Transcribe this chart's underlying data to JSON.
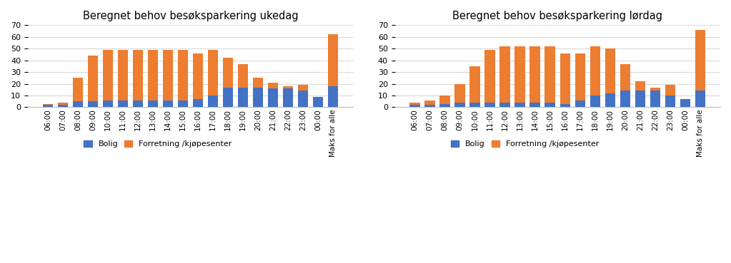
{
  "left_title": "Beregnet behov besøksparkering ukedag",
  "right_title": "Beregnet behov besøksparkering lørdag",
  "categories": [
    "06:00",
    "07:00",
    "08:00",
    "09:00",
    "10:00",
    "11:00",
    "12:00",
    "13:00",
    "14:00",
    "15:00",
    "16:00",
    "17:00",
    "18:00",
    "19:00",
    "20:00",
    "21:00",
    "22:00",
    "23:00",
    "00:00",
    "Maks for alle"
  ],
  "left_bolig": [
    2,
    2,
    5,
    5,
    6,
    6,
    6,
    6,
    6,
    6,
    7,
    10,
    17,
    17,
    17,
    16,
    16,
    14,
    9,
    18
  ],
  "left_forretning": [
    1,
    2,
    20,
    39,
    43,
    43,
    43,
    43,
    43,
    43,
    39,
    39,
    25,
    20,
    8,
    5,
    2,
    5,
    0,
    44
  ],
  "right_bolig": [
    2,
    2,
    3,
    4,
    4,
    4,
    4,
    4,
    4,
    4,
    3,
    6,
    10,
    12,
    14,
    14,
    14,
    10,
    7,
    14
  ],
  "right_forretning": [
    2,
    4,
    7,
    16,
    31,
    45,
    48,
    48,
    48,
    48,
    43,
    40,
    42,
    38,
    23,
    8,
    3,
    9,
    0,
    52
  ],
  "color_bolig": "#4472c4",
  "color_forretning": "#ed7d31",
  "ylim": [
    0,
    70
  ],
  "yticks": [
    0,
    10,
    20,
    30,
    40,
    50,
    60,
    70
  ],
  "legend_bolig": "Bolig",
  "legend_forretning": "Forretning /kjøpesenter",
  "bg_color": "#ffffff",
  "grid_color": "#d9d9d9"
}
